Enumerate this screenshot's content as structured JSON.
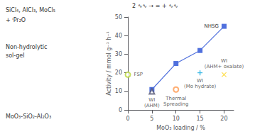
{
  "chart_data": {
    "type": "scatter",
    "xlabel": "MoO₃ loading / %",
    "ylabel": "Activity / mmol g⁻¹ h⁻¹",
    "xlim": [
      0,
      22
    ],
    "xticks": [
      0,
      5,
      10,
      15,
      20
    ],
    "ylim": [
      0,
      50
    ],
    "yticks": [
      0,
      10,
      20,
      30,
      40,
      50
    ],
    "grid": false,
    "annotations": [
      "SiCl₄, AlCl₃, MoCl₅",
      "+ ⁱPr₂O",
      "Non-hydrolytic",
      "sol-gel",
      "MoO₃-SiO₂-Al₂O₃",
      "2 ∿∿ → = + ∿∿"
    ],
    "series": [
      {
        "name": "NHSG",
        "type": "line",
        "marker": "square",
        "x": [
          5,
          10,
          15,
          20
        ],
        "values": [
          11,
          25,
          32,
          45
        ]
      },
      {
        "name": "FSP",
        "type": "scatter",
        "marker": "open_circle",
        "x": [
          0
        ],
        "values": [
          19
        ]
      },
      {
        "name": "WI (AHM)",
        "type": "scatter",
        "marker": "open_triangle",
        "x": [
          5
        ],
        "values": [
          10
        ]
      },
      {
        "name": "Thermal Spreading",
        "type": "scatter",
        "marker": "open_circle",
        "x": [
          10
        ],
        "values": [
          11
        ]
      },
      {
        "name": "WI (Mo hydrate)",
        "type": "scatter",
        "marker": "plus",
        "x": [
          15
        ],
        "values": [
          20
        ]
      },
      {
        "name": "WI (AHM+ oxalate)",
        "type": "scatter",
        "marker": "x",
        "x": [
          20
        ],
        "values": [
          19
        ]
      }
    ]
  }
}
